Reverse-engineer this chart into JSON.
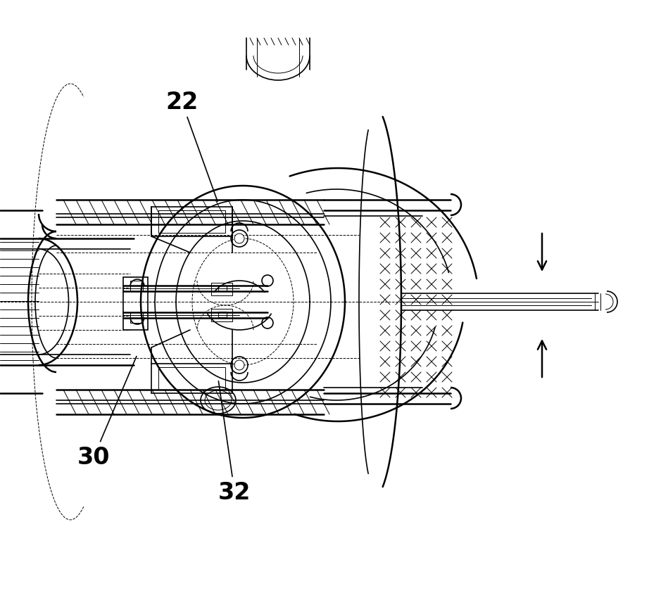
{
  "bg_color": "#ffffff",
  "line_color": "#000000",
  "label_22": "22",
  "label_30": "30",
  "label_32": "32",
  "figwidth": 9.39,
  "figheight": 8.54,
  "dpi": 100
}
